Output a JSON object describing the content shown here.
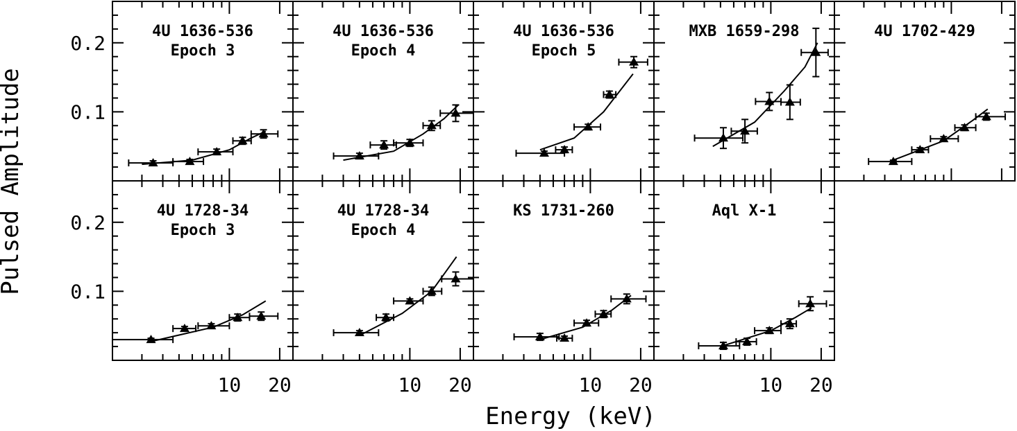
{
  "chart_data": {
    "type": "scatter",
    "xlabel": "Energy (keV)",
    "ylabel": "Pulsed Amplitude",
    "xlim": [
      2,
      24
    ],
    "ylim": [
      0,
      0.26
    ],
    "xticks": [
      10,
      20
    ],
    "yticks": [
      0.1,
      0.2
    ],
    "panels": [
      {
        "title": [
          "4U 1636-536",
          "Epoch 3"
        ],
        "points": [
          [
            3.5,
            0.026,
            2.5,
            4.6,
            0.003
          ],
          [
            5.8,
            0.028,
            4.6,
            7.0,
            0.003
          ],
          [
            8.4,
            0.042,
            6.5,
            10.5,
            0.004
          ],
          [
            12.0,
            0.058,
            10.5,
            13.5,
            0.005
          ],
          [
            16.0,
            0.068,
            13.5,
            19.5,
            0.006
          ]
        ],
        "fit": [
          [
            3.0,
            0.024
          ],
          [
            6.0,
            0.03
          ],
          [
            10.0,
            0.045
          ],
          [
            13.5,
            0.062
          ],
          [
            16.5,
            0.072
          ]
        ]
      },
      {
        "title": [
          "4U 1636-536",
          "Epoch 4"
        ],
        "points": [
          [
            5.0,
            0.036,
            3.5,
            6.5,
            0.004
          ],
          [
            7.0,
            0.052,
            5.8,
            8.3,
            0.006
          ],
          [
            10.0,
            0.055,
            8.0,
            12.0,
            0.005
          ],
          [
            13.5,
            0.08,
            12.0,
            15.2,
            0.007
          ],
          [
            18.8,
            0.098,
            15.2,
            24.0,
            0.012
          ]
        ],
        "fit": [
          [
            4.0,
            0.03
          ],
          [
            8.0,
            0.043
          ],
          [
            12.0,
            0.068
          ],
          [
            16.0,
            0.09
          ],
          [
            19.5,
            0.11
          ]
        ]
      },
      {
        "title": [
          "4U 1636-536",
          "Epoch 5"
        ],
        "points": [
          [
            5.3,
            0.04,
            3.6,
            7.0,
            0.003
          ],
          [
            7.0,
            0.045,
            6.2,
            7.8,
            0.004
          ],
          [
            9.7,
            0.078,
            8.0,
            11.5,
            0.004
          ],
          [
            13.0,
            0.125,
            12.0,
            14.2,
            0.005
          ],
          [
            18.2,
            0.172,
            14.8,
            22.0,
            0.008
          ]
        ],
        "fit": [
          [
            5.0,
            0.045
          ],
          [
            8.0,
            0.062
          ],
          [
            12.0,
            0.1
          ],
          [
            18.0,
            0.155
          ]
        ]
      },
      {
        "title": [
          "MXB 1659-298",
          ""
        ],
        "points": [
          [
            5.2,
            0.062,
            3.5,
            6.8,
            0.015
          ],
          [
            7.0,
            0.072,
            5.8,
            8.3,
            0.017
          ],
          [
            9.8,
            0.115,
            8.1,
            11.5,
            0.013
          ],
          [
            13.0,
            0.114,
            11.5,
            15.0,
            0.025
          ],
          [
            18.6,
            0.186,
            15.2,
            22.0,
            0.035
          ]
        ],
        "fit": [
          [
            4.5,
            0.05
          ],
          [
            8.0,
            0.085
          ],
          [
            12.0,
            0.13
          ],
          [
            16.0,
            0.165
          ],
          [
            19.0,
            0.2
          ]
        ]
      },
      {
        "title": [
          "4U 1702-429",
          ""
        ],
        "points": [
          [
            4.5,
            0.028,
            3.2,
            5.8,
            0.002
          ],
          [
            6.5,
            0.045,
            5.8,
            7.3,
            0.003
          ],
          [
            9.0,
            0.061,
            7.5,
            11.0,
            0.003
          ],
          [
            12.0,
            0.077,
            10.5,
            14.0,
            0.004
          ],
          [
            16.2,
            0.093,
            14.0,
            21.0,
            0.005
          ]
        ],
        "fit": [
          [
            4.5,
            0.03
          ],
          [
            9.0,
            0.058
          ],
          [
            13.5,
            0.088
          ],
          [
            16.5,
            0.104
          ]
        ]
      },
      {
        "title": [
          "4U 1728-34",
          "Epoch 3"
        ],
        "points": [
          [
            3.4,
            0.03,
            2.0,
            4.6,
            0.002
          ],
          [
            5.4,
            0.046,
            4.6,
            6.3,
            0.003
          ],
          [
            7.8,
            0.05,
            6.5,
            10.0,
            0.003
          ],
          [
            11.2,
            0.062,
            10.0,
            13.2,
            0.005
          ],
          [
            15.5,
            0.064,
            13.2,
            19.5,
            0.006
          ]
        ],
        "fit": [
          [
            3.5,
            0.028
          ],
          [
            8.0,
            0.048
          ],
          [
            12.0,
            0.066
          ],
          [
            16.5,
            0.086
          ]
        ]
      },
      {
        "title": [
          "4U 1728-34",
          "Epoch 4"
        ],
        "points": [
          [
            5.0,
            0.04,
            3.5,
            6.5,
            0.003
          ],
          [
            7.2,
            0.062,
            6.3,
            8.0,
            0.005
          ],
          [
            10.0,
            0.086,
            8.0,
            12.0,
            0.003
          ],
          [
            13.5,
            0.1,
            12.0,
            15.5,
            0.006
          ],
          [
            18.8,
            0.118,
            15.5,
            24.0,
            0.01
          ]
        ],
        "fit": [
          [
            5.0,
            0.036
          ],
          [
            9.0,
            0.068
          ],
          [
            13.5,
            0.1
          ],
          [
            19.0,
            0.15
          ]
        ]
      },
      {
        "title": [
          "KS 1731-260",
          ""
        ],
        "points": [
          [
            5.0,
            0.034,
            3.5,
            6.5,
            0.005
          ],
          [
            7.0,
            0.032,
            6.3,
            7.8,
            0.003
          ],
          [
            9.5,
            0.054,
            8.0,
            11.2,
            0.004
          ],
          [
            12.0,
            0.067,
            10.7,
            13.3,
            0.005
          ],
          [
            16.5,
            0.089,
            13.3,
            21.5,
            0.007
          ]
        ],
        "fit": [
          [
            5.0,
            0.03
          ],
          [
            9.0,
            0.048
          ],
          [
            13.5,
            0.073
          ],
          [
            17.5,
            0.094
          ]
        ]
      },
      {
        "title": [
          "Aql X-1",
          ""
        ],
        "points": [
          [
            5.2,
            0.021,
            3.7,
            6.5,
            0.005
          ],
          [
            7.2,
            0.027,
            6.2,
            8.2,
            0.005
          ],
          [
            9.8,
            0.043,
            8.0,
            11.5,
            0.004
          ],
          [
            13.0,
            0.053,
            11.5,
            14.2,
            0.007
          ],
          [
            17.2,
            0.082,
            14.7,
            21.5,
            0.01
          ]
        ],
        "fit": [
          [
            5.0,
            0.02
          ],
          [
            10.0,
            0.043
          ],
          [
            14.0,
            0.062
          ],
          [
            17.5,
            0.076
          ]
        ]
      }
    ]
  }
}
